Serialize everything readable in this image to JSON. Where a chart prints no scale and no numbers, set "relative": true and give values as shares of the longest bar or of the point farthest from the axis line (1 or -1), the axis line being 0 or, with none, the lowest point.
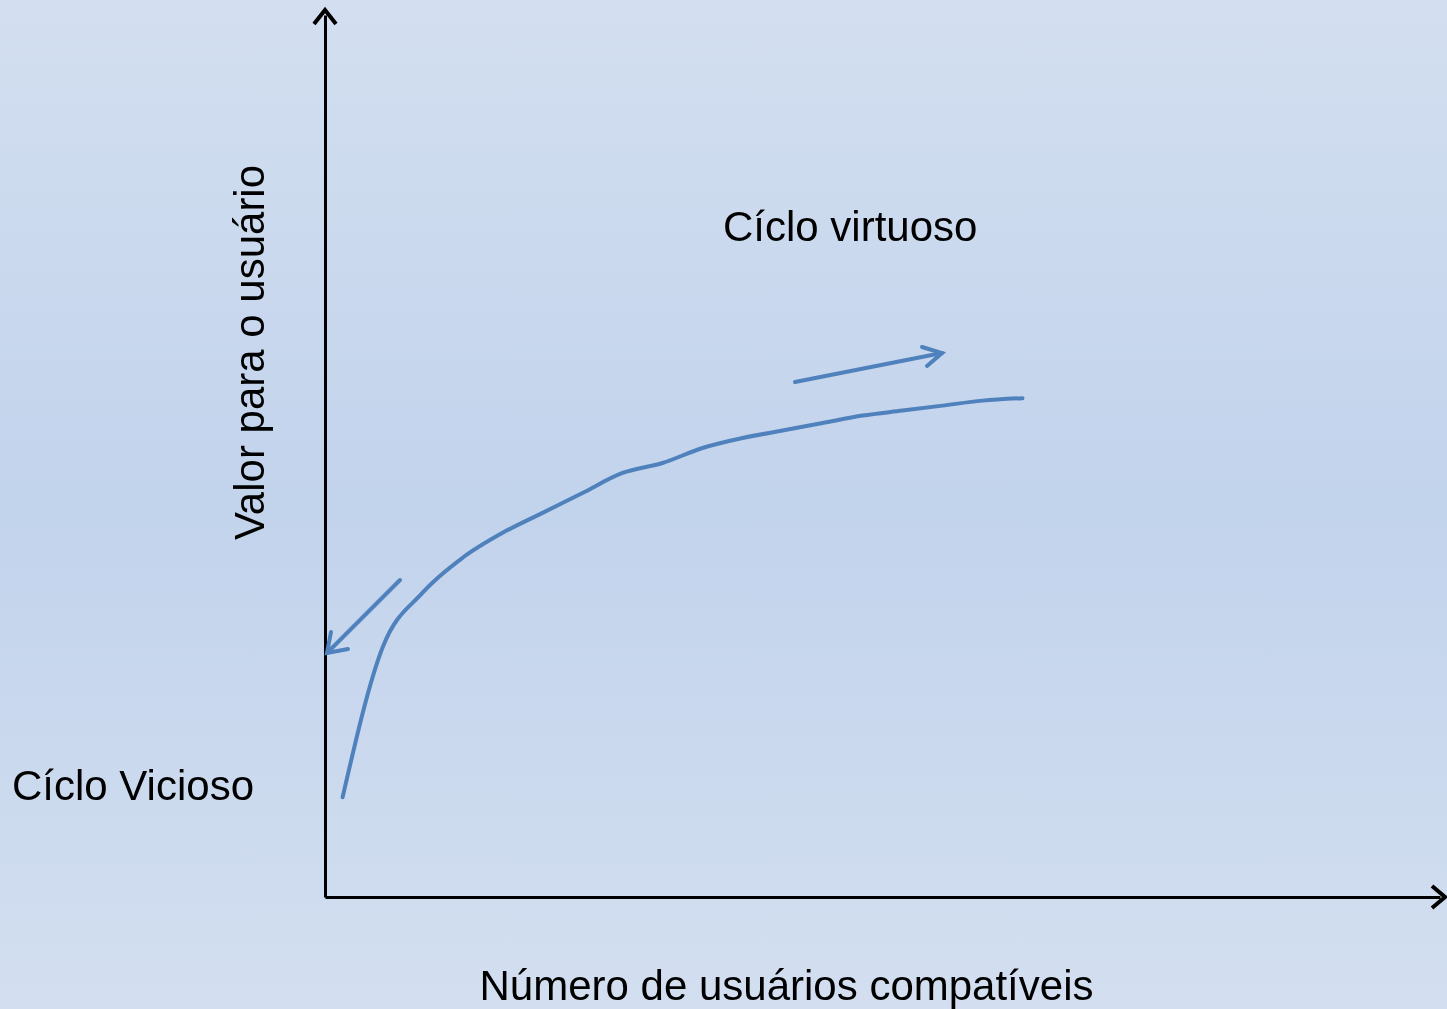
{
  "chart_data": {
    "type": "line",
    "relative": true,
    "xlabel": "Número de usuários compatíveis",
    "ylabel": "Valor para o usuário",
    "annotations": [
      "Cíclo virtuoso",
      "Cíclo Vicioso"
    ],
    "categories": [
      null,
      null,
      null,
      null,
      null,
      null,
      null,
      null,
      null,
      null,
      null,
      null,
      null,
      null,
      null,
      null,
      null,
      null,
      null,
      null,
      null,
      null,
      null,
      null,
      null,
      null,
      null,
      null
    ],
    "values": [
      0.2,
      0.5,
      0.61,
      0.68,
      0.73,
      0.77,
      0.81,
      0.85,
      0.87,
      0.9,
      0.92,
      0.935,
      0.95,
      0.965,
      0.975,
      0.985,
      0.995,
      1,
      null,
      null,
      null,
      null,
      null,
      null,
      null,
      null,
      null,
      null
    ],
    "color": "#4f81bd"
  }
}
